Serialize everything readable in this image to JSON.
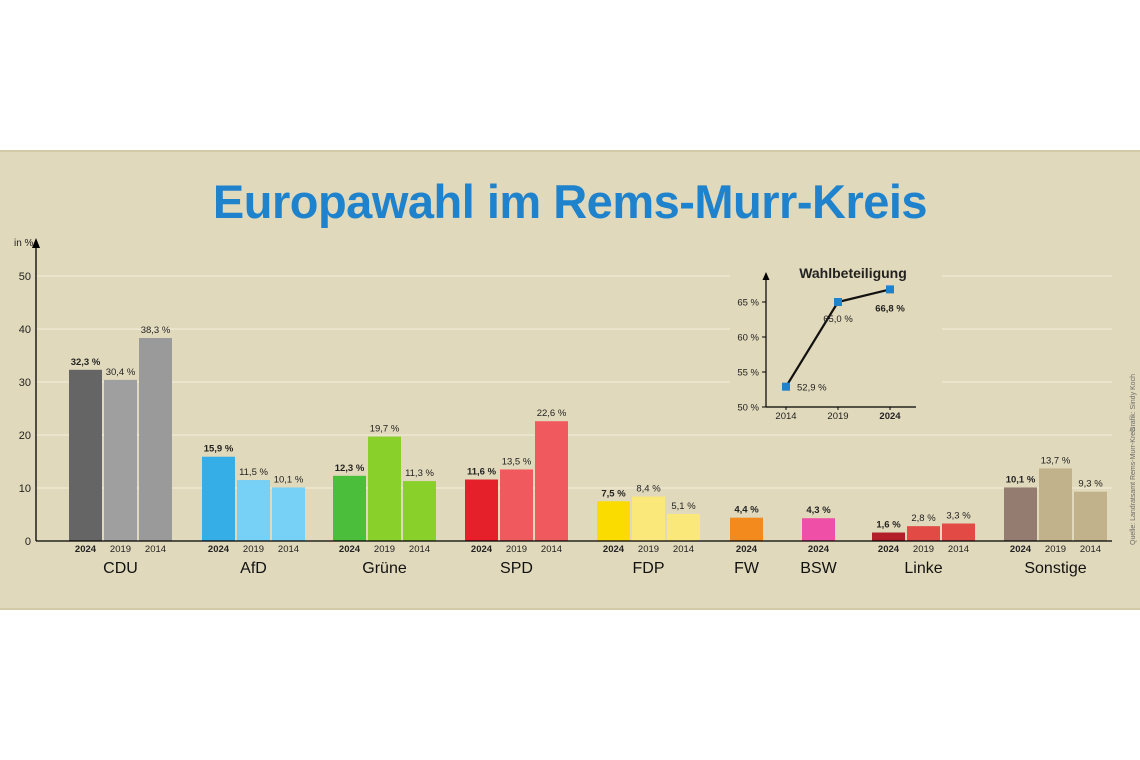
{
  "title": "Europawahl im Rems-Murr-Kreis",
  "credits": {
    "grafik": "Grafik: Sindy Koch",
    "quelle": "Quelle: Landratsamt Rems-Murr-Kreis"
  },
  "colors": {
    "title": "#1f82cc",
    "background": "#e1d9bb",
    "gridline": "#f4efdf"
  },
  "chart_data": [
    {
      "type": "bar",
      "ylabel": "in %",
      "ylim": [
        0,
        50
      ],
      "yticks": [
        "0",
        "10",
        "20",
        "30",
        "40",
        "50"
      ],
      "grid": true,
      "parties": [
        {
          "name": "CDU",
          "bars": [
            {
              "year": "2024",
              "value": 32.3,
              "label": "32,3 %",
              "color": "#656565"
            },
            {
              "year": "2019",
              "value": 30.4,
              "label": "30,4 %",
              "color": "#9f9f9f"
            },
            {
              "year": "2014",
              "value": 38.3,
              "label": "38,3 %",
              "color": "#9a9a9a"
            }
          ]
        },
        {
          "name": "AfD",
          "bars": [
            {
              "year": "2024",
              "value": 15.9,
              "label": "15,9 %",
              "color": "#35ade6"
            },
            {
              "year": "2019",
              "value": 11.5,
              "label": "11,5 %",
              "color": "#77d0f6"
            },
            {
              "year": "2014",
              "value": 10.1,
              "label": "10,1 %",
              "color": "#77d0f6"
            }
          ]
        },
        {
          "name": "Grüne",
          "bars": [
            {
              "year": "2024",
              "value": 12.3,
              "label": "12,3 %",
              "color": "#4bbf3b"
            },
            {
              "year": "2019",
              "value": 19.7,
              "label": "19,7 %",
              "color": "#89d12a"
            },
            {
              "year": "2014",
              "value": 11.3,
              "label": "11,3 %",
              "color": "#89d12a"
            }
          ]
        },
        {
          "name": "SPD",
          "bars": [
            {
              "year": "2024",
              "value": 11.6,
              "label": "11,6 %",
              "color": "#e6202a"
            },
            {
              "year": "2019",
              "value": 13.5,
              "label": "13,5 %",
              "color": "#f05a5f"
            },
            {
              "year": "2014",
              "value": 22.6,
              "label": "22,6 %",
              "color": "#f05a5f"
            }
          ]
        },
        {
          "name": "FDP",
          "bars": [
            {
              "year": "2024",
              "value": 7.5,
              "label": "7,5 %",
              "color": "#fbdc00"
            },
            {
              "year": "2019",
              "value": 8.4,
              "label": "8,4 %",
              "color": "#fbe87a"
            },
            {
              "year": "2014",
              "value": 5.1,
              "label": "5,1 %",
              "color": "#fbe87a"
            }
          ]
        },
        {
          "name": "FW",
          "bars": [
            {
              "year": "2024",
              "value": 4.4,
              "label": "4,4 %",
              "color": "#f28a1d"
            }
          ]
        },
        {
          "name": "BSW",
          "bars": [
            {
              "year": "2024",
              "value": 4.3,
              "label": "4,3 %",
              "color": "#ef4fa6"
            }
          ]
        },
        {
          "name": "Linke",
          "bars": [
            {
              "year": "2024",
              "value": 1.6,
              "label": "1,6 %",
              "color": "#b21f29"
            },
            {
              "year": "2019",
              "value": 2.8,
              "label": "2,8 %",
              "color": "#e14a45"
            },
            {
              "year": "2014",
              "value": 3.3,
              "label": "3,3 %",
              "color": "#e14a45"
            }
          ]
        },
        {
          "name": "Sonstige",
          "bars": [
            {
              "year": "2024",
              "value": 10.1,
              "label": "10,1 %",
              "color": "#947c70"
            },
            {
              "year": "2019",
              "value": 13.7,
              "label": "13,7 %",
              "color": "#c2b28c"
            },
            {
              "year": "2014",
              "value": 9.3,
              "label": "9,3 %",
              "color": "#c2b28c"
            }
          ]
        }
      ]
    },
    {
      "type": "line",
      "title": "Wahlbeteiligung",
      "x": [
        "2014",
        "2019",
        "2024"
      ],
      "y": [
        52.9,
        65.0,
        66.8
      ],
      "point_labels": [
        "52,9 %",
        "65,0 %",
        "66,8 %"
      ],
      "ylim": [
        50,
        67
      ],
      "yticks": [
        {
          "value": 50,
          "label": "50 %"
        },
        {
          "value": 55,
          "label": "55 %"
        },
        {
          "value": 60,
          "label": "60 %"
        },
        {
          "value": 65,
          "label": "65 %"
        }
      ],
      "line_color": "#111111",
      "marker_color": "#1f82cc"
    }
  ]
}
